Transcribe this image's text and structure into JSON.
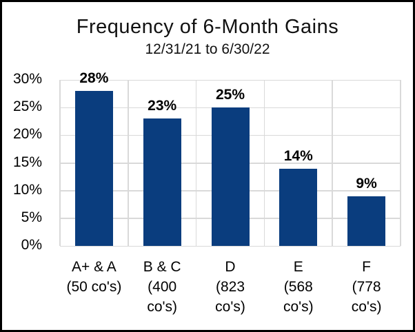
{
  "chart": {
    "title": "Frequency of 6-Month Gains",
    "subtitle": "12/31/21 to 6/30/22"
  },
  "chart_data": {
    "type": "bar",
    "title": "Frequency of 6-Month Gains",
    "subtitle": "12/31/21 to 6/30/22",
    "categories": [
      "A+ & A\n(50 co's)",
      "B & C\n(400\nco's)",
      "D\n(823\nco's)",
      "E\n(568\nco's)",
      "F\n(778\nco's)"
    ],
    "values": [
      28,
      23,
      25,
      14,
      9
    ],
    "value_labels": [
      "28%",
      "23%",
      "25%",
      "14%",
      "9%"
    ],
    "xlabel": "",
    "ylabel": "",
    "ylim": [
      0,
      30
    ],
    "ytick_step": 5,
    "ytick_labels": [
      "0%",
      "5%",
      "10%",
      "15%",
      "20%",
      "25%",
      "30%"
    ],
    "grid": true,
    "legend": "none",
    "colors": {
      "bar": "#0A3D7E",
      "gridline": "#D9D9D9",
      "text": "#000000",
      "title_text": "#111111",
      "frame_border": "#000000",
      "background": "#FFFFFF"
    }
  }
}
